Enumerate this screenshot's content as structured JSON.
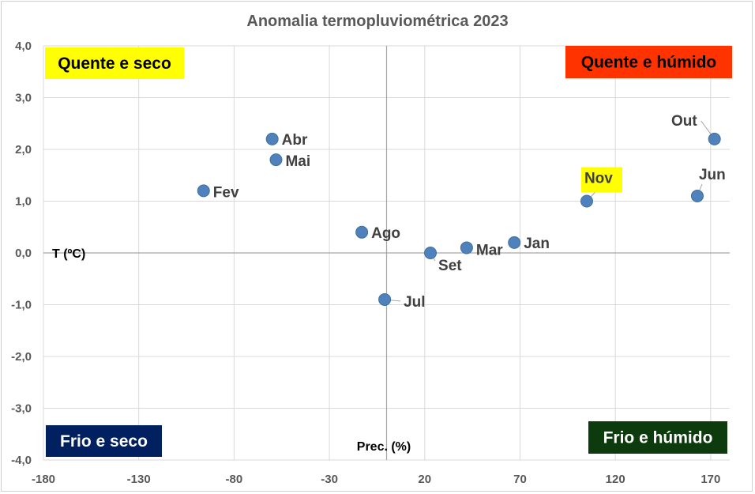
{
  "chart_data": {
    "type": "scatter",
    "title": "Anomalia termopluviométrica 2023",
    "xlabel": "Prec. (%)",
    "ylabel": "T (ºC)",
    "xlim": [
      -180,
      180
    ],
    "ylim": [
      -4.0,
      4.0
    ],
    "x_ticks": [
      -180,
      -130,
      -80,
      -30,
      20,
      70,
      120,
      170
    ],
    "x_tick_labels": [
      "-180",
      "-130",
      "-80",
      "-30",
      "20",
      "70",
      "120",
      "170"
    ],
    "y_ticks": [
      4.0,
      3.0,
      2.0,
      1.0,
      0.0,
      -1.0,
      -2.0,
      -3.0,
      -4.0
    ],
    "y_tick_labels": [
      "4,0",
      "3,0",
      "2,0",
      "1,0",
      "0,0",
      "-1,0",
      "-2,0",
      "-3,0",
      "-4,0"
    ],
    "grid": true,
    "marker_color": "#4f81bd",
    "points": [
      {
        "label": "Jan",
        "x": 67,
        "y": 0.2
      },
      {
        "label": "Fev",
        "x": -96,
        "y": 1.2
      },
      {
        "label": "Mar",
        "x": 42,
        "y": 0.1
      },
      {
        "label": "Abr",
        "x": -60,
        "y": 2.2
      },
      {
        "label": "Mai",
        "x": -58,
        "y": 1.8
      },
      {
        "label": "Jun",
        "x": 163,
        "y": 1.1
      },
      {
        "label": "Jul",
        "x": -1,
        "y": -0.9
      },
      {
        "label": "Ago",
        "x": -13,
        "y": 0.4
      },
      {
        "label": "Set",
        "x": 23,
        "y": 0.0
      },
      {
        "label": "Out",
        "x": 172,
        "y": 2.2
      },
      {
        "label": "Nov",
        "x": 105,
        "y": 1.0,
        "highlight_color": "#ffff00"
      }
    ],
    "quadrant_labels": [
      {
        "text": "Quente e seco",
        "position": "top-left",
        "bg": "#ffff00",
        "color": "#000000"
      },
      {
        "text": "Quente e húmido",
        "position": "top-right",
        "bg": "#ff3300",
        "color": "#000000"
      },
      {
        "text": "Frio e seco",
        "position": "bottom-left",
        "bg": "#002060",
        "color": "#ffffff"
      },
      {
        "text": "Frio e húmido",
        "position": "bottom-right",
        "bg": "#0d3b0d",
        "color": "#ffffff"
      }
    ]
  }
}
